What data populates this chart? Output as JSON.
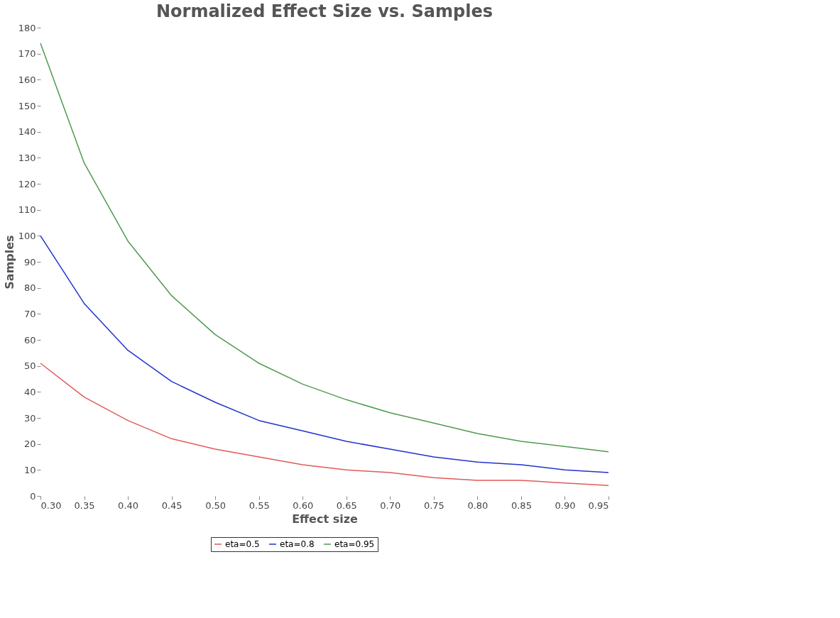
{
  "chart_data": {
    "type": "line",
    "title": "Normalized Effect Size vs. Samples",
    "xlabel": "Effect size",
    "ylabel": "Samples",
    "x": [
      0.3,
      0.35,
      0.4,
      0.45,
      0.5,
      0.55,
      0.6,
      0.65,
      0.7,
      0.75,
      0.8,
      0.85,
      0.9,
      0.95
    ],
    "series": [
      {
        "name": "eta=0.5",
        "color": "#e05a5a",
        "values": [
          51,
          38,
          29,
          22,
          18,
          15,
          12,
          10,
          9,
          7,
          6,
          6,
          5,
          4
        ]
      },
      {
        "name": "eta=0.8",
        "color": "#2233cc",
        "values": [
          100,
          74,
          56,
          44,
          36,
          29,
          25,
          21,
          18,
          15,
          13,
          12,
          10,
          9
        ]
      },
      {
        "name": "eta=0.95",
        "color": "#4f9a4f",
        "values": [
          174,
          128,
          98,
          77,
          62,
          51,
          43,
          37,
          32,
          28,
          24,
          21,
          19,
          17
        ]
      }
    ],
    "xlim": [
      0.3,
      0.95
    ],
    "xticks": [
      {
        "value": 0.3,
        "label": "0.30"
      },
      {
        "value": 0.35,
        "label": "0.35"
      },
      {
        "value": 0.4,
        "label": "0.40"
      },
      {
        "value": 0.45,
        "label": "0.45"
      },
      {
        "value": 0.5,
        "label": "0.50"
      },
      {
        "value": 0.55,
        "label": "0.55"
      },
      {
        "value": 0.6,
        "label": "0.60"
      },
      {
        "value": 0.65,
        "label": "0.65"
      },
      {
        "value": 0.7,
        "label": "0.70"
      },
      {
        "value": 0.75,
        "label": "0.75"
      },
      {
        "value": 0.8,
        "label": "0.80"
      },
      {
        "value": 0.85,
        "label": "0.85"
      },
      {
        "value": 0.9,
        "label": "0.90"
      },
      {
        "value": 0.95,
        "label": "0.95"
      }
    ],
    "ylim": [
      0,
      180
    ],
    "yticks": [
      0,
      10,
      20,
      30,
      40,
      50,
      60,
      70,
      80,
      90,
      100,
      110,
      120,
      130,
      140,
      150,
      160,
      170,
      180
    ],
    "grid": false,
    "legend": "bottom",
    "marker": "none",
    "line_style": "solid"
  }
}
